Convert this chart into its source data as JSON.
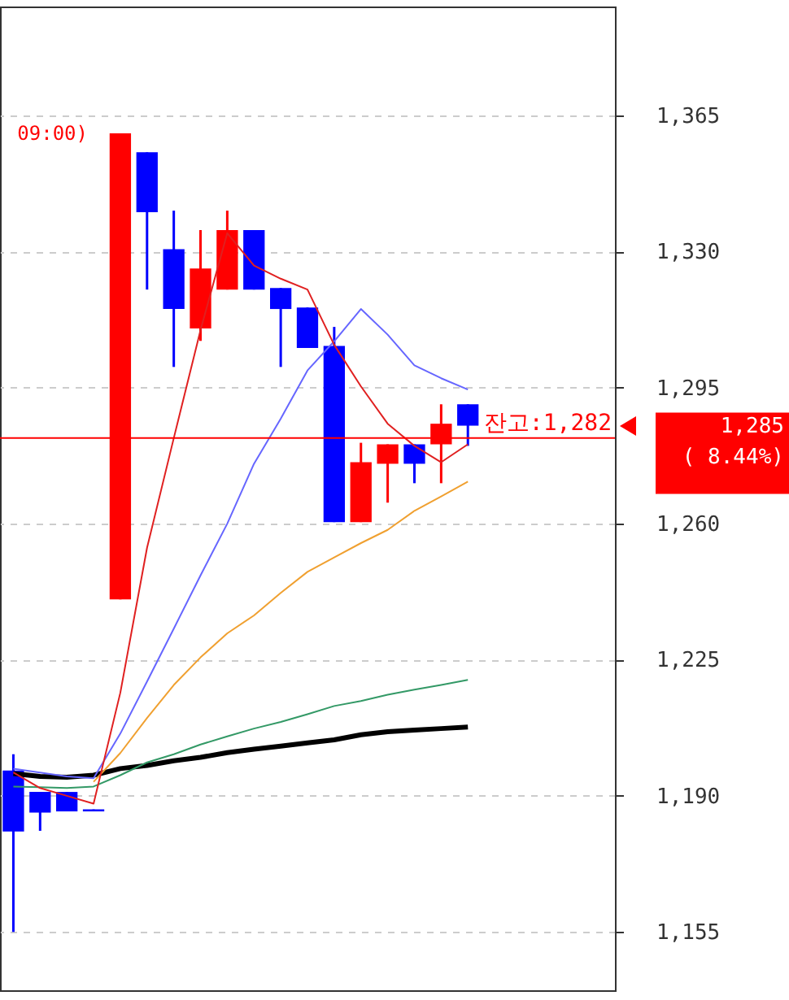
{
  "chart_data": {
    "type": "candlestick",
    "categories": [
      null,
      null,
      null,
      null,
      null,
      null,
      null,
      null,
      null,
      null,
      null,
      null,
      null,
      null,
      null,
      null,
      null,
      null,
      null,
      null,
      null,
      null,
      null
    ],
    "ohlc": [
      [
        1196.5,
        1200.7,
        1155,
        1180.8
      ],
      [
        1191,
        1191,
        1181,
        1185.7
      ],
      [
        1191,
        1191,
        1186,
        1186
      ],
      [
        1186.5,
        1186.5,
        1186,
        1186
      ],
      [
        1240.5,
        1360.4,
        1240.5,
        1360.4
      ],
      [
        1355.5,
        1355.5,
        1320.2,
        1340.1
      ],
      [
        1330.6,
        1340.5,
        1300.3,
        1315.2
      ],
      [
        1310.2,
        1335.5,
        1307,
        1325.6
      ],
      [
        1320.2,
        1340.5,
        1320.2,
        1335.5
      ],
      [
        1335.5,
        1335.5,
        1320.2,
        1320.2
      ],
      [
        1320.6,
        1320.6,
        1300.3,
        1315.2
      ],
      [
        1315.6,
        1315.6,
        1305.2,
        1305.2
      ],
      [
        1305.7,
        1310.6,
        1260.4,
        1260.4
      ],
      [
        1260.4,
        1280.8,
        1260.4,
        1275.8
      ],
      [
        1275.4,
        1280.4,
        1265.4,
        1280.4
      ],
      [
        1280.4,
        1280.4,
        1270.4,
        1275.4
      ],
      [
        1280.4,
        1290.7,
        1270.4,
        1285.7
      ],
      [
        1290.7,
        1290.7,
        1280,
        1285.2
      ],
      null,
      null,
      null,
      null,
      null
    ],
    "colors": [
      "#0000ff",
      "#0000ff",
      "#0000ff",
      "#0000ff",
      "#ff0000",
      "#0000ff",
      "#0000ff",
      "#ff0000",
      "#ff0000",
      "#0000ff",
      "#0000ff",
      "#0000ff",
      "#0000ff",
      "#ff0000",
      "#ff0000",
      "#0000ff",
      "#ff0000",
      "#0000ff",
      null,
      null,
      null,
      null,
      null
    ],
    "series": [
      {
        "type": "line",
        "color": "#000000",
        "values": [
          1195.7,
          1195,
          1194.8,
          1195.3,
          1197,
          1197.8,
          1199,
          1199.9,
          1201.1,
          1202,
          1202.8,
          1203.6,
          1204.4,
          1205.7,
          1206.5,
          1206.9,
          1207.3,
          1207.7,
          null,
          null,
          null,
          null,
          null
        ]
      },
      {
        "type": "line",
        "color": "#339966",
        "values": [
          1192.4,
          1192.2,
          1192,
          1192.4,
          1195.3,
          1198.6,
          1200.7,
          1203.2,
          1205.3,
          1207.3,
          1209,
          1211,
          1213.1,
          1214.4,
          1216,
          1217.3,
          1218.5,
          1219.8,
          null,
          null,
          null,
          null,
          null
        ]
      },
      {
        "type": "line",
        "color": "#f0a030",
        "values": [
          null,
          null,
          null,
          1193.6,
          1201,
          1210,
          1218.5,
          1225.6,
          1231.8,
          1236.4,
          1242.2,
          1247.6,
          1251.3,
          1255,
          1258.4,
          1263.3,
          1267,
          1270.8,
          null,
          null,
          null,
          null,
          null
        ]
      },
      {
        "type": "line",
        "color": "#6666ff",
        "values": [
          1197,
          1196,
          1195,
          1194.5,
          1206,
          1219.4,
          1233,
          1246.7,
          1260,
          1275.4,
          1287,
          1299.4,
          1306.9,
          1315.2,
          1308.6,
          1300.7,
          1297.4,
          1294.5,
          null,
          null,
          null,
          null,
          null
        ]
      },
      {
        "type": "line",
        "color": "#e02020",
        "values": [
          1196,
          1192,
          1190,
          1188,
          1216.5,
          1253.8,
          1282,
          1309.8,
          1334.7,
          1326.4,
          1323,
          1320.2,
          1306,
          1295.3,
          1285.7,
          1280,
          1275.8,
          1280.4,
          null,
          null,
          null,
          null,
          null
        ]
      }
    ],
    "ylim": [
      1140,
      1393
    ],
    "yticks": [
      {
        "value": 1155,
        "label": "1,155"
      },
      {
        "value": 1190,
        "label": "1,190"
      },
      {
        "value": 1225,
        "label": "1,225"
      },
      {
        "value": 1260,
        "label": "1,260"
      },
      {
        "value": 1295,
        "label": "1,295"
      },
      {
        "value": 1330,
        "label": "1,330"
      },
      {
        "value": 1365,
        "label": "1,365"
      }
    ],
    "ref_lines": [
      {
        "axis": "y",
        "value": 1282,
        "label": "잔고:1,282",
        "color": "#ff0000"
      }
    ],
    "annotations": [
      "09:00)",
      "1,285",
      "( 8.44%)"
    ],
    "grid": "y",
    "tick_labels": "y"
  }
}
